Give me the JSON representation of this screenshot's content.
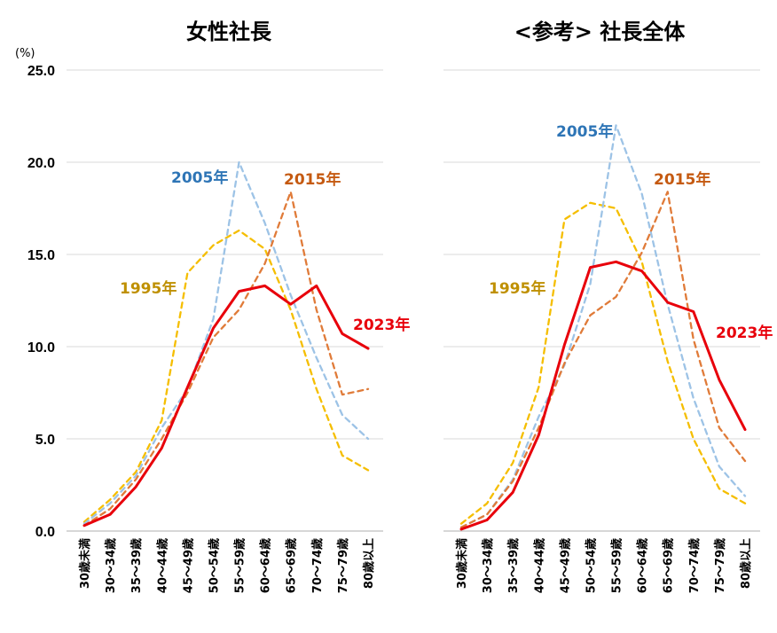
{
  "unit_label": "(%)",
  "chart_data": [
    {
      "type": "line",
      "title": "女性社長",
      "categories": [
        "30歳未満",
        "30～34歳",
        "35～39歳",
        "40～44歳",
        "45～49歳",
        "50～54歳",
        "55～59歳",
        "60～64歳",
        "65～69歳",
        "70～74歳",
        "75～79歳",
        "80歳以上"
      ],
      "ylim": [
        0,
        25
      ],
      "yticks": [
        "0.0",
        "5.0",
        "10.0",
        "15.0",
        "20.0",
        "25.0"
      ],
      "grid": true,
      "series": [
        {
          "name": "1995年",
          "color": "#F5BE00",
          "dashed": true,
          "values": [
            0.5,
            1.7,
            3.2,
            6.0,
            14.0,
            15.5,
            16.3,
            15.3,
            12.0,
            7.7,
            4.1,
            3.3
          ]
        },
        {
          "name": "2005年",
          "color": "#9DC3E6",
          "dashed": true,
          "values": [
            0.4,
            1.5,
            3.0,
            5.6,
            7.7,
            11.5,
            20.0,
            16.7,
            12.8,
            9.4,
            6.3,
            5.0
          ]
        },
        {
          "name": "2015年",
          "color": "#E07B39",
          "dashed": true,
          "values": [
            0.3,
            1.2,
            2.8,
            5.0,
            7.5,
            10.5,
            12.0,
            14.5,
            18.4,
            12.0,
            7.4,
            7.7
          ]
        },
        {
          "name": "2023年",
          "color": "#E8000B",
          "dashed": false,
          "values": [
            0.3,
            0.9,
            2.4,
            4.5,
            7.8,
            11.0,
            13.0,
            13.3,
            12.3,
            13.3,
            10.7,
            9.9
          ]
        }
      ]
    },
    {
      "type": "line",
      "title": "<参考> 社長全体",
      "categories": [
        "30歳未満",
        "30～34歳",
        "35～39歳",
        "40～44歳",
        "45～49歳",
        "50～54歳",
        "55～59歳",
        "60～64歳",
        "65～69歳",
        "70～74歳",
        "75～79歳",
        "80歳以上"
      ],
      "ylim": [
        0,
        25
      ],
      "grid": true,
      "series": [
        {
          "name": "1995年",
          "color": "#F5BE00",
          "dashed": true,
          "values": [
            0.4,
            1.5,
            3.7,
            7.8,
            16.9,
            17.8,
            17.5,
            14.6,
            9.2,
            5.0,
            2.3,
            1.5
          ]
        },
        {
          "name": "2005年",
          "color": "#9DC3E6",
          "dashed": true,
          "values": [
            0.2,
            0.9,
            2.8,
            6.2,
            9.0,
            13.4,
            22.0,
            18.3,
            12.3,
            7.2,
            3.5,
            1.9
          ]
        },
        {
          "name": "2015年",
          "color": "#E07B39",
          "dashed": true,
          "values": [
            0.2,
            0.9,
            2.7,
            5.6,
            9.1,
            11.7,
            12.7,
            15.1,
            18.4,
            10.4,
            5.6,
            3.8
          ]
        },
        {
          "name": "2023年",
          "color": "#E8000B",
          "dashed": false,
          "values": [
            0.1,
            0.6,
            2.1,
            5.2,
            10.1,
            14.3,
            14.6,
            14.1,
            12.4,
            11.9,
            8.2,
            5.5
          ]
        }
      ]
    }
  ]
}
